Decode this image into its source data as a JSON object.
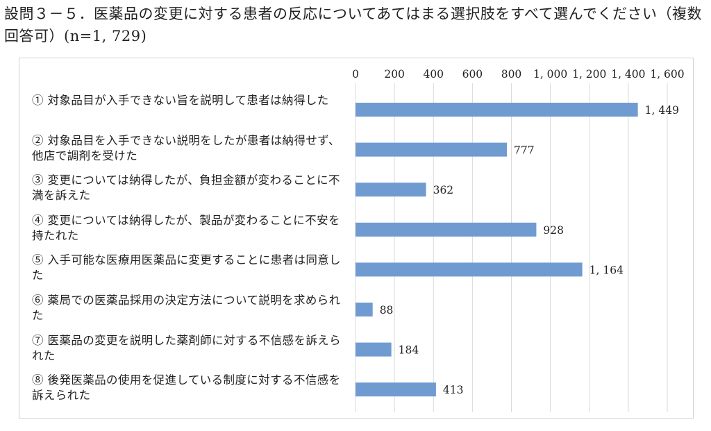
{
  "title": "設問３－５．医薬品の変更に対する患者の反応についてあてはまる選択肢をすべて選んでください（複数回答可）(n=1, 729)",
  "chart_data": {
    "type": "bar",
    "orientation": "horizontal",
    "categories": [
      "① 対象品目が入手できない旨を説明して患者は納得した",
      "② 対象品目を入手できない説明をしたが患者は納得せず、他店で調剤を受けた",
      "③ 変更については納得したが、負担金額が変わることに不満を訴えた",
      "④ 変更については納得したが、製品が変わることに不安を持たれた",
      "⑤ 入手可能な医療用医薬品に変更することに患者は同意した",
      "⑥ 薬局での医薬品採用の決定方法について説明を求められた",
      "⑦ 医薬品の変更を説明した薬剤師に対する不信感を訴えられた",
      "⑧ 後発医薬品の使用を促進している制度に対する不信感を訴えられた"
    ],
    "values": [
      1449,
      777,
      362,
      928,
      1164,
      88,
      184,
      413
    ],
    "value_labels": [
      "1, 449",
      "777",
      "362",
      "928",
      "1, 164",
      "88",
      "184",
      "413"
    ],
    "xlim": [
      0,
      1600
    ],
    "x_ticks": [
      0,
      200,
      400,
      600,
      800,
      1000,
      1200,
      1400,
      1600
    ],
    "x_tick_labels": [
      "0",
      "200",
      "400",
      "600",
      "800",
      "1, 000",
      "1, 200",
      "1, 400",
      "1, 600"
    ],
    "axis_position": "top",
    "gridlines": true,
    "bar_color": "#6f9bd1",
    "grid_color": "#d9d9d9"
  }
}
